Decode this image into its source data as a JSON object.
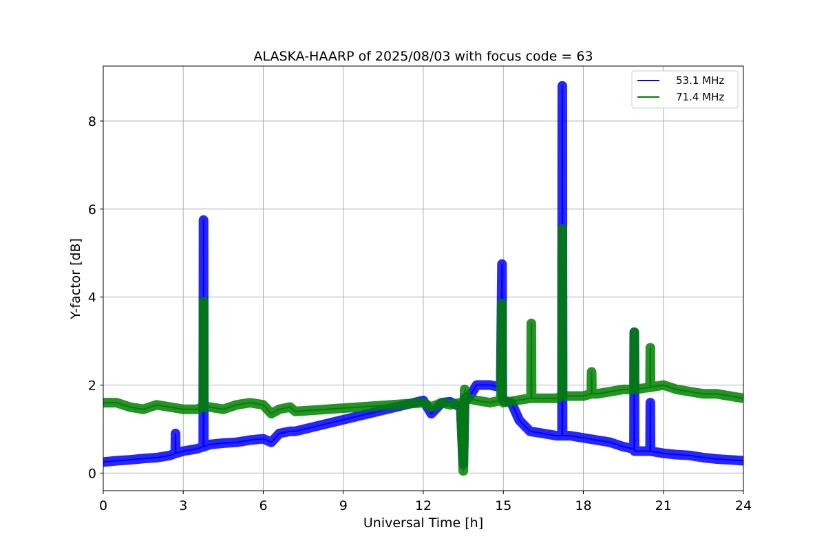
{
  "chart_data": {
    "type": "line",
    "title": "ALASKA-HAARP of 2025/08/03 with focus code = 63",
    "xlabel": "Universal Time [h]",
    "ylabel": "Y-factor [dB]",
    "xlim": [
      0,
      24
    ],
    "ylim": [
      -0.4,
      9.25
    ],
    "xticks": [
      0,
      3,
      6,
      9,
      12,
      15,
      18,
      21,
      24
    ],
    "xtick_labels": [
      "0",
      "3",
      "6",
      "9",
      "12",
      "15",
      "18",
      "21",
      "24"
    ],
    "yticks": [
      0,
      2,
      4,
      6,
      8
    ],
    "ytick_labels": [
      "0",
      "2",
      "4",
      "6",
      "8"
    ],
    "grid": true,
    "legend_position": "top-right",
    "colors": {
      "53.1 MHz": "#0000ff",
      "71.4 MHz": "#008000"
    },
    "series": [
      {
        "name": "53.1 MHz",
        "color": "#0000ff",
        "x": [
          0,
          0.5,
          1,
          1.5,
          2,
          2.5,
          2.7,
          2.71,
          2.72,
          3,
          3.5,
          3.75,
          3.76,
          3.77,
          4,
          4.5,
          5,
          5.5,
          6,
          6.3,
          6.6,
          7,
          7.2,
          12,
          12.3,
          12.7,
          13,
          13.4,
          13.5,
          13.55,
          13.6,
          13.8,
          14,
          14.5,
          14.9,
          14.95,
          14.96,
          15,
          15.3,
          15.6,
          16,
          16.5,
          17,
          17.2,
          17.21,
          17.22,
          17.5,
          18,
          18.5,
          19,
          19.5,
          19.9,
          19.91,
          19.92,
          20.5,
          20.51,
          20.52,
          21,
          21.5,
          22,
          22.5,
          23,
          23.5,
          24
        ],
        "y": [
          0.25,
          0.28,
          0.3,
          0.33,
          0.35,
          0.4,
          0.45,
          0.9,
          0.45,
          0.5,
          0.55,
          0.6,
          5.75,
          0.6,
          0.65,
          0.68,
          0.7,
          0.75,
          0.78,
          0.7,
          0.9,
          0.95,
          0.95,
          1.65,
          1.35,
          1.6,
          1.62,
          1.5,
          0.2,
          1.7,
          1.65,
          1.8,
          2.0,
          2.0,
          1.95,
          4.75,
          1.7,
          1.65,
          1.6,
          1.2,
          0.95,
          0.9,
          0.85,
          0.85,
          8.8,
          0.85,
          0.85,
          0.8,
          0.75,
          0.7,
          0.6,
          0.55,
          3.2,
          0.5,
          0.5,
          1.6,
          0.5,
          0.45,
          0.42,
          0.4,
          0.35,
          0.32,
          0.3,
          0.28
        ]
      },
      {
        "name": "71.4 MHz",
        "color": "#008000",
        "x": [
          0,
          0.5,
          1,
          1.5,
          2,
          2.5,
          3,
          3.5,
          3.75,
          3.76,
          3.77,
          4,
          4.5,
          5,
          5.5,
          6,
          6.3,
          6.6,
          7,
          7.2,
          12,
          12.3,
          12.7,
          13,
          13.4,
          13.5,
          13.55,
          13.6,
          14,
          14.5,
          14.9,
          14.95,
          14.96,
          15,
          15.5,
          16,
          16.04,
          16.05,
          16.06,
          16.5,
          17,
          17.2,
          17.21,
          17.22,
          17.5,
          18,
          18.3,
          18.31,
          18.32,
          18.5,
          19,
          19.5,
          19.9,
          19.91,
          19.92,
          20.5,
          20.51,
          20.52,
          21,
          21.5,
          22,
          22.5,
          23,
          23.5,
          24
        ],
        "y": [
          1.6,
          1.6,
          1.5,
          1.45,
          1.55,
          1.5,
          1.45,
          1.45,
          1.5,
          3.9,
          1.5,
          1.5,
          1.45,
          1.55,
          1.6,
          1.55,
          1.35,
          1.45,
          1.5,
          1.4,
          1.6,
          1.5,
          1.6,
          1.55,
          1.6,
          0.05,
          1.9,
          1.7,
          1.65,
          1.6,
          1.65,
          3.85,
          1.65,
          1.6,
          1.65,
          1.7,
          1.7,
          3.4,
          1.7,
          1.7,
          1.7,
          1.75,
          5.55,
          1.75,
          1.75,
          1.75,
          1.8,
          2.3,
          1.8,
          1.8,
          1.85,
          1.9,
          1.9,
          3.2,
          1.9,
          1.95,
          2.85,
          1.95,
          2.0,
          1.9,
          1.85,
          1.8,
          1.8,
          1.75,
          1.7
        ]
      }
    ]
  }
}
